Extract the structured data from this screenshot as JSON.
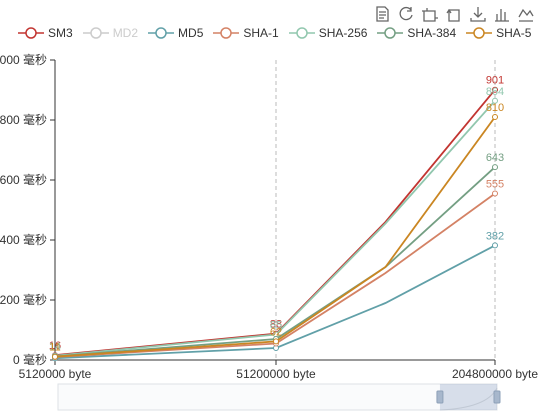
{
  "toolbar": [
    {
      "name": "text-view-icon",
      "title": "Data view"
    },
    {
      "name": "refresh-icon",
      "title": "Restore"
    },
    {
      "name": "zoom-select-icon",
      "title": "Zoom"
    },
    {
      "name": "zoom-reset-icon",
      "title": "Zoom reset"
    },
    {
      "name": "download-icon",
      "title": "Save as image"
    },
    {
      "name": "bar-chart-icon",
      "title": "Switch to bar"
    },
    {
      "name": "line-chart-icon",
      "title": "Switch to line"
    }
  ],
  "legend": [
    {
      "name": "SM3",
      "color": "#c23531",
      "active": true
    },
    {
      "name": "MD2",
      "color": "#cccccc",
      "active": false
    },
    {
      "name": "MD5",
      "color": "#61a0a8",
      "active": true
    },
    {
      "name": "SHA-1",
      "color": "#d48265",
      "active": true
    },
    {
      "name": "SHA-256",
      "color": "#91c7ae",
      "active": true
    },
    {
      "name": "SHA-384",
      "color": "#749f83",
      "active": true
    },
    {
      "name": "SHA-5",
      "color": "#ca8622",
      "active": true
    }
  ],
  "chart_data": {
    "type": "line",
    "x": [
      "5120000 byte",
      "51200000 byte",
      "204800000 byte"
    ],
    "xlabel": "",
    "ylabel": "",
    "ylim": [
      0,
      1000
    ],
    "y_unit": "毫秒",
    "y_ticks": [
      "0 毫秒",
      "200 毫秒",
      "400 毫秒",
      "600 毫秒",
      "800 毫秒",
      "1000 毫秒"
    ],
    "grid": "vertical-dashed",
    "series": [
      {
        "name": "SM3",
        "color": "#c23531",
        "values": [
          {
            "x": 5120000,
            "y": 16,
            "label": "16"
          },
          {
            "x": 51200000,
            "y": 88,
            "label": "88"
          },
          {
            "x": 128000000,
            "y": 460
          },
          {
            "x": 204800000,
            "y": 901,
            "label": "901"
          }
        ]
      },
      {
        "name": "MD5",
        "color": "#61a0a8",
        "values": [
          {
            "x": 5120000,
            "y": 6
          },
          {
            "x": 51200000,
            "y": 40
          },
          {
            "x": 128000000,
            "y": 190
          },
          {
            "x": 204800000,
            "y": 382,
            "label": "382"
          }
        ]
      },
      {
        "name": "SHA-1",
        "color": "#d48265",
        "values": [
          {
            "x": 5120000,
            "y": 10
          },
          {
            "x": 51200000,
            "y": 55
          },
          {
            "x": 128000000,
            "y": 290
          },
          {
            "x": 204800000,
            "y": 555,
            "label": "555"
          }
        ]
      },
      {
        "name": "SHA-256",
        "color": "#91c7ae",
        "values": [
          {
            "x": 5120000,
            "y": 14,
            "label": "14"
          },
          {
            "x": 51200000,
            "y": 85,
            "label": "85"
          },
          {
            "x": 128000000,
            "y": 455
          },
          {
            "x": 204800000,
            "y": 864,
            "label": "864"
          }
        ]
      },
      {
        "name": "SHA-384",
        "color": "#749f83",
        "values": [
          {
            "x": 5120000,
            "y": 12
          },
          {
            "x": 51200000,
            "y": 70
          },
          {
            "x": 128000000,
            "y": 310
          },
          {
            "x": 204800000,
            "y": 643,
            "label": "643"
          }
        ]
      },
      {
        "name": "SHA-5",
        "color": "#ca8622",
        "values": [
          {
            "x": 5120000,
            "y": 11,
            "label": "11"
          },
          {
            "x": 51200000,
            "y": 62,
            "label": "62"
          },
          {
            "x": 128000000,
            "y": 310
          },
          {
            "x": 204800000,
            "y": 810,
            "label": "810"
          }
        ]
      }
    ]
  },
  "datazoom": {
    "start": 0.0,
    "end": 1.0,
    "window_start": 0.87,
    "window_end": 1.0
  }
}
